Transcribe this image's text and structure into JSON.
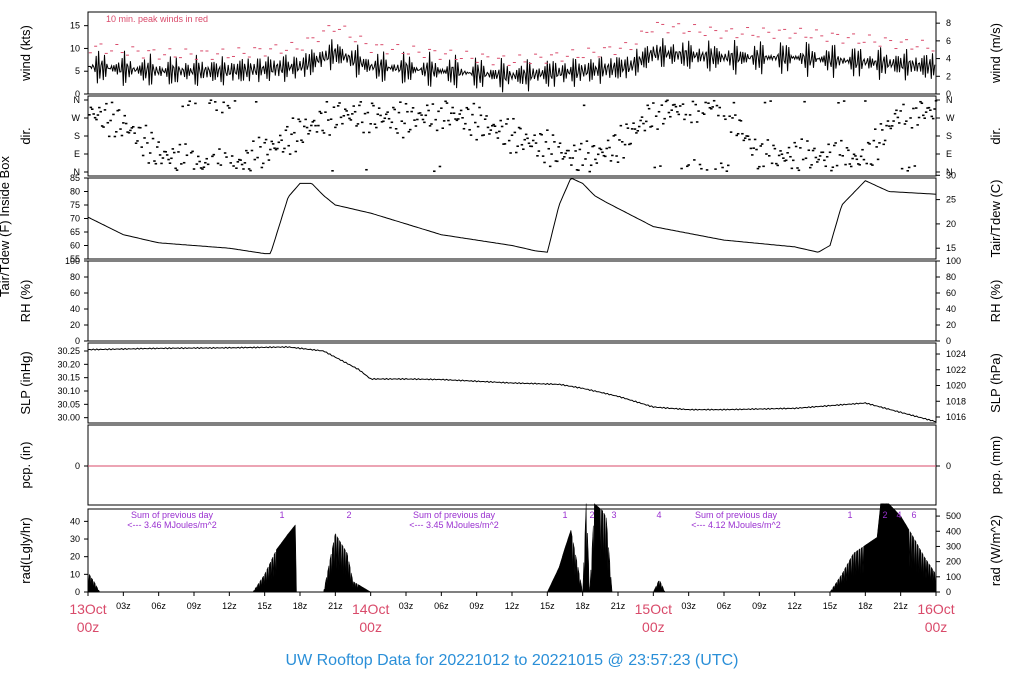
{
  "title": "UW Rooftop Data for 20221012  to  20221015 @ 23:57:23  (UTC)",
  "colors": {
    "accent_red": "#d94a6a",
    "purple": "#9a30d0",
    "title_blue": "#2a8fd8",
    "trace": "#000000"
  },
  "x_axis": {
    "range_hours": [
      0,
      72
    ],
    "hour_labels": [
      "03z",
      "06z",
      "09z",
      "12z",
      "15z",
      "18z",
      "21z"
    ],
    "date_labels": [
      {
        "day": "13Oct",
        "time": "00z"
      },
      {
        "day": "14Oct",
        "time": "00z"
      },
      {
        "day": "15Oct",
        "time": "00z"
      },
      {
        "day": "16Oct",
        "time": "00z"
      }
    ]
  },
  "chart_data": [
    {
      "id": "wind",
      "type": "line",
      "ylabel_left": "wind (kts)",
      "ylabel_right": "wind (m/s)",
      "ylim": [
        0,
        18
      ],
      "yticks_left": [
        0,
        5,
        10,
        15
      ],
      "yticks_right": [
        0,
        2,
        4,
        6,
        8
      ],
      "annotation": "10 min. peak winds in red",
      "series": [
        {
          "x": [
            0,
            6,
            12,
            18,
            21,
            24,
            30,
            36,
            42,
            46,
            48,
            54,
            60,
            66,
            72
          ],
          "values": [
            6,
            5,
            5,
            6,
            9,
            6,
            5,
            4,
            5,
            6,
            9,
            8,
            8,
            7,
            6
          ]
        }
      ]
    },
    {
      "id": "dir",
      "type": "scatter",
      "ylabel_left": "dir.",
      "ylabel_right": "dir.",
      "yticks_left": [
        "N",
        "W",
        "S",
        "E",
        "N"
      ],
      "yticks_right": [
        "N",
        "W",
        "S",
        "E",
        "N"
      ],
      "series": [
        {
          "x": [
            0,
            3,
            6,
            9,
            12,
            15,
            18,
            21,
            24,
            27,
            30,
            33,
            36,
            39,
            42,
            45,
            48,
            51,
            54,
            57,
            60,
            63,
            66,
            69,
            72
          ],
          "values": [
            300,
            240,
            90,
            40,
            20,
            100,
            200,
            290,
            280,
            260,
            300,
            250,
            180,
            120,
            60,
            130,
            300,
            330,
            340,
            70,
            80,
            75,
            60,
            310,
            300
          ]
        }
      ]
    },
    {
      "id": "temp",
      "type": "line",
      "ylabel_left": "Tair/Tdew (F) Inside Box",
      "ylabel_right": "Tair/Tdew (C)",
      "ylim": [
        55,
        85
      ],
      "yticks_left": [
        55,
        60,
        65,
        70,
        75,
        80,
        85
      ],
      "yticks_right": [
        15,
        20,
        25,
        30
      ],
      "series": [
        {
          "x": [
            0,
            3,
            6,
            12,
            15,
            15.5,
            17,
            18,
            19,
            20,
            21,
            24,
            30,
            36,
            38,
            39,
            40,
            41,
            42,
            43,
            44,
            48,
            54,
            60,
            62,
            63,
            64,
            66,
            68,
            72
          ],
          "values": [
            70.5,
            64,
            61,
            59,
            57,
            57,
            78,
            83,
            83,
            78.5,
            75,
            72,
            64,
            60,
            58,
            57.5,
            75,
            85,
            83,
            78.5,
            76,
            67,
            62,
            59.5,
            57.5,
            60,
            75,
            84,
            80,
            79
          ]
        }
      ]
    },
    {
      "id": "rh",
      "type": "line",
      "ylabel_left": "RH (%)",
      "ylabel_right": "RH (%)",
      "ylim": [
        0,
        100
      ],
      "yticks_left": [
        0,
        20,
        40,
        60,
        80,
        100
      ],
      "yticks_right": [
        0,
        20,
        40,
        60,
        80,
        100
      ],
      "series": []
    },
    {
      "id": "slp",
      "type": "line",
      "ylabel_left": "SLP (inHg)",
      "ylabel_right": "SLP (hPa)",
      "ylim": [
        29.98,
        30.28
      ],
      "yticks_left": [
        "30.00",
        "30.05",
        "30.10",
        "30.15",
        "30.20",
        "30.25"
      ],
      "yticks_right": [
        1016,
        1018,
        1020,
        1022,
        1024
      ],
      "series": [
        {
          "x": [
            0,
            6,
            12,
            17,
            20,
            23,
            24,
            27,
            30,
            36,
            40,
            42,
            45,
            48,
            51,
            54,
            60,
            66,
            69,
            72
          ],
          "values": [
            30.255,
            30.26,
            30.262,
            30.265,
            30.25,
            30.18,
            30.145,
            30.145,
            30.143,
            30.13,
            30.125,
            30.11,
            30.08,
            30.04,
            30.03,
            30.03,
            30.035,
            30.055,
            30.02,
            29.985
          ]
        }
      ]
    },
    {
      "id": "pcp",
      "type": "line",
      "ylabel_left": "pcp. (in)",
      "ylabel_right": "pcp. (mm)",
      "yticks_left": [
        0
      ],
      "yticks_right": [
        0
      ],
      "series": [
        {
          "x": [
            0,
            72
          ],
          "values": [
            0,
            0
          ]
        }
      ]
    },
    {
      "id": "rad",
      "type": "area",
      "ylabel_left": "rad(Lgly/hr)",
      "ylabel_right": "rad (W/m^2)",
      "ylim": [
        0,
        47
      ],
      "yticks_left": [
        0,
        10,
        20,
        30,
        40
      ],
      "yticks_right": [
        0,
        100,
        200,
        300,
        400,
        500
      ],
      "annotations": [
        {
          "line1": "Sum of previous day",
          "line2": "<--- 3.46 MJoules/m^2"
        },
        {
          "line1": "Sum of previous day",
          "line2": "<--- 3.45 MJoules/m^2"
        },
        {
          "line1": "Sum of previous day",
          "line2": "<--- 4.12 MJoules/m^2"
        }
      ],
      "markers": [
        "1",
        "2",
        "1",
        "2",
        "3",
        "4",
        "1",
        "2",
        "4",
        "6"
      ],
      "series": [
        {
          "x": [
            0,
            0.5,
            1,
            14,
            15,
            16,
            17,
            17.6,
            17.7,
            20,
            21,
            22,
            22.5,
            24,
            39,
            40,
            40.5,
            41,
            42,
            42.3,
            42.6,
            43,
            43.7,
            44,
            44.5,
            48,
            48.5,
            49,
            63,
            64,
            65,
            67,
            67.3,
            68,
            69,
            70,
            71,
            72
          ],
          "values": [
            11,
            6,
            0,
            0,
            10,
            24,
            33,
            38,
            0,
            0,
            33,
            22,
            6,
            0,
            0,
            14,
            25,
            35,
            0,
            50,
            0,
            50,
            46,
            42,
            0,
            0,
            7,
            0,
            0,
            10,
            22,
            31,
            50,
            50,
            43,
            32,
            20,
            10
          ]
        }
      ]
    }
  ]
}
